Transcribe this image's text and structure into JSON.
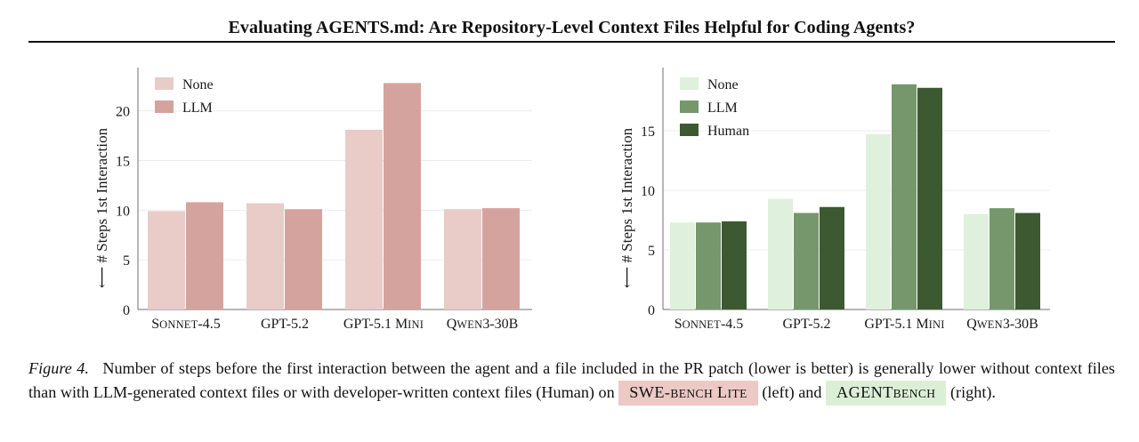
{
  "paper": {
    "title": "Evaluating AGENTS.md: Are Repository-Level Context Files Helpful for Coding Agents?"
  },
  "chart_data": [
    {
      "type": "bar",
      "categories": [
        "Sonnet-4.5",
        "GPT-5.2",
        "GPT-5.1 Mini",
        "Qwen3-30B"
      ],
      "ylabel": "⟵ # Steps 1st Interaction",
      "ylim": [
        0,
        24
      ],
      "yticks": [
        0,
        5,
        10,
        15,
        20
      ],
      "grid": true,
      "legend": "top-left",
      "series": [
        {
          "name": "None",
          "color": "#e9cbc8",
          "values": [
            9.9,
            10.7,
            18.1,
            10.1
          ]
        },
        {
          "name": "LLM",
          "color": "#d5a39e",
          "values": [
            10.8,
            10.1,
            22.8,
            10.2
          ]
        }
      ]
    },
    {
      "type": "bar",
      "categories": [
        "Sonnet-4.5",
        "GPT-5.2",
        "GPT-5.1 Mini",
        "Qwen3-30B"
      ],
      "ylabel": "⟵ # Steps 1st Interaction",
      "ylim": [
        0,
        20
      ],
      "yticks": [
        0,
        5,
        10,
        15
      ],
      "grid": true,
      "legend": "top-left",
      "series": [
        {
          "name": "None",
          "color": "#dff0dc",
          "values": [
            7.3,
            9.3,
            14.7,
            8.0
          ]
        },
        {
          "name": "LLM",
          "color": "#75976b",
          "values": [
            7.3,
            8.1,
            18.9,
            8.5
          ]
        },
        {
          "name": "Human",
          "color": "#3d5931",
          "values": [
            7.4,
            8.6,
            18.6,
            8.1
          ]
        }
      ]
    }
  ],
  "caption": {
    "figure_label": "Figure 4.",
    "text": "Number of steps before the first interaction between the agent and a file included in the PR patch (lower is better) is generally lower without context files than with LLM-generated context files or with developer-written context files (Human) on",
    "bench_left": "SWE-bench Lite",
    "bench_left_color": "#ecc9c5",
    "between": "(left) and",
    "bench_right": "AGENTbench",
    "bench_right_color": "#dcefd6",
    "end": "(right)."
  }
}
